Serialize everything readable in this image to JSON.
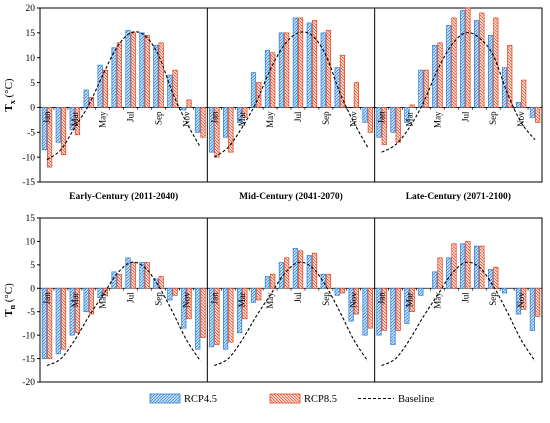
{
  "chart_data": [
    {
      "type": "bar",
      "ylabel_main": "T",
      "ylabel_sub": "x",
      "ylabel_unit": "(°C)",
      "ylim": [
        -15,
        20
      ],
      "yticks": [
        -15,
        -10,
        -5,
        0,
        5,
        10,
        15,
        20
      ],
      "grid": false,
      "period_labels": [
        "Early-Century (2011-2040)",
        "Mid-Century (2041-2070)",
        "Late-Century (2071-2100)"
      ],
      "month_labels": [
        "Jan",
        "Mar",
        "May",
        "Jul",
        "Sep",
        "Nov"
      ],
      "panels": [
        {
          "period": "Early-Century (2011-2040)",
          "series": [
            {
              "name": "RCP4.5",
              "values": [
                -8.5,
                -7,
                -4.5,
                3.5,
                8.5,
                12,
                15.5,
                15,
                12.5,
                6.5,
                -0.5,
                -5
              ]
            },
            {
              "name": "RCP8.5",
              "values": [
                -12,
                -9.5,
                -5.5,
                2,
                7.5,
                13,
                15,
                14.5,
                13,
                7.5,
                1.5,
                -6
              ]
            },
            {
              "name": "Baseline",
              "values": [
                -10.5,
                -8.5,
                -4,
                0.5,
                6.5,
                12,
                15,
                14.5,
                10.5,
                3,
                -3,
                -8
              ]
            }
          ]
        },
        {
          "period": "Mid-Century (2041-2070)",
          "series": [
            {
              "name": "RCP4.5",
              "values": [
                -9,
                -6,
                -3,
                7,
                11.5,
                15,
                18,
                17,
                15,
                8,
                0,
                -3
              ]
            },
            {
              "name": "RCP8.5",
              "values": [
                -10,
                -9,
                -2,
                5,
                11,
                15,
                18,
                17.5,
                15.5,
                10.5,
                5,
                -5
              ]
            },
            {
              "name": "Baseline",
              "values": [
                -10,
                -8,
                -4,
                1,
                7.5,
                12.5,
                15,
                14.5,
                10.5,
                3,
                -3,
                -8
              ]
            }
          ]
        },
        {
          "period": "Late-Century (2071-2100)",
          "series": [
            {
              "name": "RCP4.5",
              "values": [
                -6,
                -5,
                -3,
                7.5,
                12.5,
                16.5,
                19.5,
                17.5,
                14.5,
                8,
                1,
                -2
              ]
            },
            {
              "name": "RCP8.5",
              "values": [
                -7.5,
                -7,
                0.5,
                7.5,
                13,
                18,
                20,
                19,
                18,
                12.5,
                5.5,
                -3
              ]
            },
            {
              "name": "Baseline",
              "values": [
                -9,
                -7.5,
                -4,
                1,
                7.5,
                12.5,
                15,
                14,
                10.5,
                3,
                -3,
                -6.5
              ]
            }
          ]
        }
      ]
    },
    {
      "type": "bar",
      "ylabel_main": "T",
      "ylabel_sub": "n",
      "ylabel_unit": "(°C)",
      "ylim": [
        -20,
        15
      ],
      "yticks": [
        -20,
        -15,
        -10,
        -5,
        0,
        5,
        10,
        15
      ],
      "grid": false,
      "month_labels": [
        "Jan",
        "Mar",
        "May",
        "Jul",
        "Sep",
        "Nov"
      ],
      "panels": [
        {
          "series": [
            {
              "name": "RCP4.5",
              "values": [
                -15,
                -14,
                -10,
                -5,
                -2,
                3.5,
                6.5,
                5.5,
                2,
                -2.5,
                -8.5,
                -13
              ]
            },
            {
              "name": "RCP8.5",
              "values": [
                -15,
                -13,
                -9.5,
                -5.5,
                -1.5,
                3,
                5.5,
                5.5,
                2.5,
                -1.5,
                -6.5,
                -10.5
              ]
            },
            {
              "name": "Baseline",
              "values": [
                -16.5,
                -15,
                -11,
                -6,
                -1.5,
                3,
                5.5,
                4.5,
                0.5,
                -5,
                -11,
                -15.5
              ]
            }
          ]
        },
        {
          "series": [
            {
              "name": "RCP4.5",
              "values": [
                -12.5,
                -13,
                -9.5,
                -3,
                2.5,
                5.5,
                8.5,
                7,
                3,
                -1.5,
                -7,
                -10
              ]
            },
            {
              "name": "RCP8.5",
              "values": [
                -12,
                -11.5,
                -6.5,
                -2.5,
                3,
                6.5,
                8,
                7.5,
                3,
                -1,
                -5.5,
                -8.5
              ]
            },
            {
              "name": "Baseline",
              "values": [
                -16.5,
                -15,
                -11,
                -6,
                -1.5,
                3,
                5.5,
                4.5,
                0.5,
                -5,
                -11,
                -15.5
              ]
            }
          ]
        },
        {
          "series": [
            {
              "name": "RCP4.5",
              "values": [
                -10,
                -12,
                -7.5,
                -1.5,
                3.5,
                6.5,
                9.5,
                9,
                4,
                -1,
                -5.5,
                -9
              ]
            },
            {
              "name": "RCP8.5",
              "values": [
                -9,
                -9,
                -5,
                0,
                6.5,
                9.5,
                10,
                9,
                4.5,
                0,
                -4.5,
                -6
              ]
            },
            {
              "name": "Baseline",
              "values": [
                -16.5,
                -15,
                -11,
                -6,
                -1.5,
                3,
                5.5,
                4.5,
                0.5,
                -5,
                -11,
                -15.5
              ]
            }
          ]
        }
      ]
    }
  ],
  "legend": {
    "items": [
      "RCP4.5",
      "RCP8.5",
      "Baseline"
    ]
  },
  "colors": {
    "rcp45_stroke": "#2a7bd4",
    "rcp45_fill": "#b9d8f4",
    "rcp85_stroke": "#e0401f",
    "rcp85_fill": "#fbd9cf",
    "baseline": "#000000",
    "axis": "#000000"
  }
}
